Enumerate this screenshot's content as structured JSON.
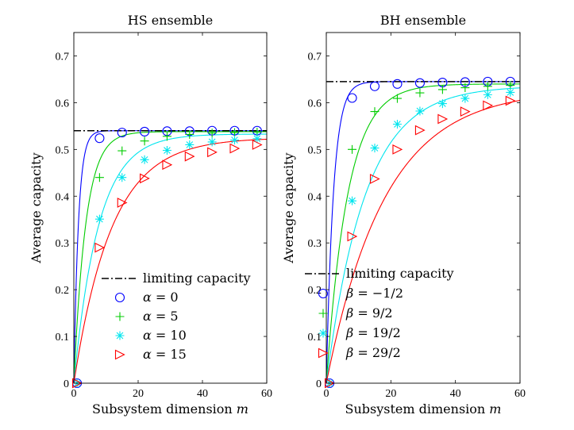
{
  "chart_data": [
    {
      "type": "line",
      "title": "HS ensemble",
      "xlabel": "Subsystem dimension",
      "xlabel_var": "m",
      "ylabel": "Average capacity",
      "xlim": [
        0,
        60
      ],
      "ylim": [
        0,
        0.75
      ],
      "xticks": [
        0,
        20,
        40,
        60
      ],
      "yticks": [
        0,
        0.1,
        0.2,
        0.3,
        0.4,
        0.5,
        0.6,
        0.7
      ],
      "ytick_labels": [
        "0",
        "0.1",
        "0.2",
        "0.3",
        "0.4",
        "0.5",
        "0.6",
        "0.7"
      ],
      "limit": {
        "label": "limiting capacity",
        "value": 0.54,
        "color": "#000000"
      },
      "legend_position": "bottom-right",
      "marker_x": [
        1,
        8,
        15,
        22,
        29,
        36,
        43,
        50,
        57
      ],
      "series": [
        {
          "name": "α = 0",
          "sym": "α",
          "eq": "= 0",
          "color": "#0000ff",
          "marker": "circle",
          "limit": 0.54,
          "b": 0.7,
          "values": [
            0.0,
            0.524,
            0.536,
            0.538,
            0.539,
            0.539,
            0.54,
            0.54,
            0.54
          ]
        },
        {
          "name": "α = 5",
          "sym": "α",
          "eq": "= 5",
          "color": "#00cc00",
          "marker": "plus",
          "limit": 0.538,
          "b": 0.27,
          "values": [
            0.0,
            0.44,
            0.497,
            0.518,
            0.528,
            0.532,
            0.535,
            0.536,
            0.537
          ]
        },
        {
          "name": "α = 10",
          "sym": "α",
          "eq": "= 10",
          "color": "#00e5ee",
          "marker": "star",
          "limit": 0.533,
          "b": 0.13,
          "values": [
            0.0,
            0.351,
            0.44,
            0.478,
            0.498,
            0.51,
            0.516,
            0.52,
            0.523
          ]
        },
        {
          "name": "α = 15",
          "sym": "α",
          "eq": "= 15",
          "color": "#ff0000",
          "marker": "triangle",
          "limit": 0.525,
          "b": 0.085,
          "values": [
            0.0,
            0.29,
            0.386,
            0.438,
            0.467,
            0.485,
            0.494,
            0.502,
            0.51
          ]
        }
      ]
    },
    {
      "type": "line",
      "title": "BH ensemble",
      "xlabel": "Subsystem dimension",
      "xlabel_var": "m",
      "ylabel": "Average capacity",
      "xlim": [
        0,
        60
      ],
      "ylim": [
        0,
        0.75
      ],
      "xticks": [
        0,
        20,
        40,
        60
      ],
      "yticks": [
        0,
        0.1,
        0.2,
        0.3,
        0.4,
        0.5,
        0.6,
        0.7
      ],
      "ytick_labels": [
        "0",
        "0.1",
        "0.2",
        "0.3",
        "0.4",
        "0.5",
        "0.6",
        "0.7"
      ],
      "limit": {
        "label": "limiting capacity",
        "value": 0.645,
        "color": "#000000"
      },
      "legend_position": "bottom-right",
      "marker_x": [
        1,
        8,
        15,
        22,
        29,
        36,
        43,
        50,
        57
      ],
      "series": [
        {
          "name": "β = −1/2",
          "sym": "β",
          "eq": "= −1/2",
          "color": "#0000ff",
          "marker": "circle",
          "limit": 0.645,
          "b": 0.45,
          "values": [
            0.0,
            0.61,
            0.635,
            0.64,
            0.642,
            0.643,
            0.644,
            0.645,
            0.645
          ]
        },
        {
          "name": "β = 9/2",
          "sym": "β",
          "eq": "= 9/2",
          "color": "#00cc00",
          "marker": "plus",
          "limit": 0.64,
          "b": 0.15,
          "values": [
            0.0,
            0.5,
            0.581,
            0.609,
            0.621,
            0.628,
            0.632,
            0.635,
            0.637
          ]
        },
        {
          "name": "β = 19/2",
          "sym": "β",
          "eq": "= 19/2",
          "color": "#00e5ee",
          "marker": "star",
          "limit": 0.636,
          "b": 0.083,
          "values": [
            0.0,
            0.39,
            0.503,
            0.554,
            0.582,
            0.598,
            0.609,
            0.617,
            0.622
          ]
        },
        {
          "name": "β = 29/2",
          "sym": "β",
          "eq": "= 29/2",
          "color": "#ff0000",
          "marker": "triangle",
          "limit": 0.628,
          "b": 0.055,
          "values": [
            0.0,
            0.314,
            0.437,
            0.5,
            0.541,
            0.565,
            0.581,
            0.594,
            0.604
          ]
        }
      ]
    }
  ]
}
